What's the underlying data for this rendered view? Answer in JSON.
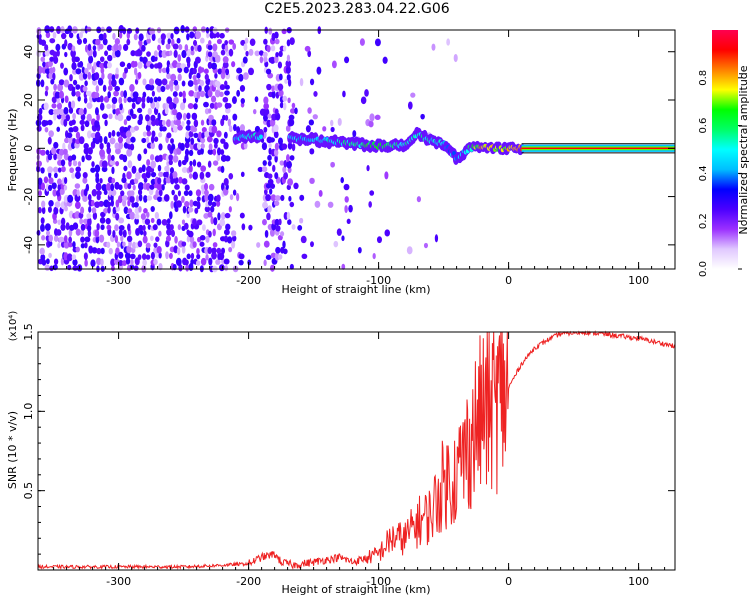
{
  "title": "C2E5.2023.283.04.22.G06",
  "chart_data": [
    {
      "type": "heatmap",
      "xlabel": "Height of straight line (km)",
      "ylabel": "Frequency (Hz)",
      "xlim": [
        -362,
        128
      ],
      "ylim": [
        -50,
        49
      ],
      "x_ticks": [
        -300,
        -200,
        -100,
        0,
        100
      ],
      "y_ticks": [
        -40,
        -20,
        0,
        20,
        40
      ],
      "colorbar": {
        "label": "Normalized spectral amplitude",
        "range": [
          0.0,
          1.0
        ],
        "ticks": [
          0.0,
          0.2,
          0.4,
          0.6,
          0.8
        ],
        "tick_labels": [
          "0.0",
          "0.2",
          "0.4",
          "0.6",
          "0.8"
        ],
        "colormap": [
          "#ffffff",
          "#e0c8ff",
          "#9b30ff",
          "#4b00ff",
          "#0000ff",
          "#00bfff",
          "#00ffff",
          "#00ff66",
          "#00ff00",
          "#ffff00",
          "#ff8000",
          "#ff0000",
          "#ff0050"
        ]
      },
      "ridge": {
        "x": [
          -210,
          -195,
          -160,
          -140,
          -120,
          -100,
          -80,
          -70,
          -60,
          -50,
          -40,
          -30,
          -20,
          -10,
          0,
          10,
          128
        ],
        "y": [
          4,
          5,
          4,
          3,
          2,
          1,
          1,
          6,
          3,
          2,
          -4,
          0,
          1,
          0,
          0,
          0,
          0
        ],
        "amplitude": [
          0.45,
          0.5,
          0.45,
          0.5,
          0.55,
          0.65,
          0.5,
          0.55,
          0.5,
          0.45,
          0.4,
          0.55,
          0.8,
          0.7,
          0.75,
          0.85,
          0.9
        ]
      }
    },
    {
      "type": "line",
      "xlabel": "Height of straight line (km)",
      "ylabel": "SNR (10 * v/v)",
      "y_multiplier": "(x10⁴)",
      "xlim": [
        -362,
        128
      ],
      "ylim": [
        0,
        1.5
      ],
      "x_ticks": [
        -300,
        -200,
        -100,
        0,
        100
      ],
      "y_ticks": [
        0.5,
        1.0,
        1.5
      ],
      "y_tick_labels": [
        "0.5",
        "1.0",
        "1.5"
      ],
      "series": [
        {
          "color": "#ee2222",
          "x": [
            -362,
            -300,
            -250,
            -220,
            -200,
            -190,
            -180,
            -175,
            -165,
            -150,
            -130,
            -120,
            -100,
            -90,
            -80,
            -70,
            -60,
            -50,
            -40,
            -30,
            -20,
            -10,
            0,
            10,
            20,
            30,
            40,
            60,
            80,
            100,
            128
          ],
          "y": [
            0.02,
            0.02,
            0.02,
            0.03,
            0.04,
            0.08,
            0.1,
            0.05,
            0.03,
            0.05,
            0.08,
            0.05,
            0.1,
            0.2,
            0.2,
            0.3,
            0.35,
            0.55,
            0.6,
            0.8,
            1.0,
            1.05,
            1.15,
            1.3,
            1.4,
            1.45,
            1.49,
            1.5,
            1.48,
            1.46,
            1.41
          ]
        }
      ]
    }
  ]
}
